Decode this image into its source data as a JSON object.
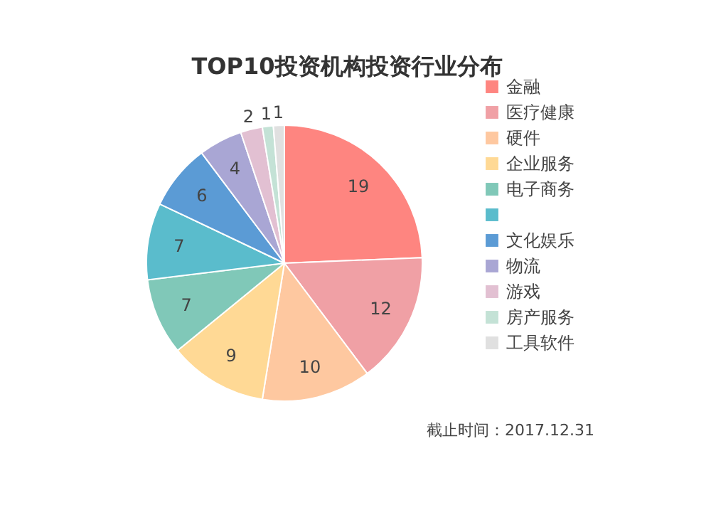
{
  "chart_data": {
    "type": "pie",
    "title": "TOP10投资机构投资行业分布",
    "categories": [
      "金融",
      "医疗健康",
      "硬件",
      "企业服务",
      "电子商务",
      null,
      "文化娱乐",
      "物流",
      "游戏",
      "房产服务",
      "工具软件"
    ],
    "values": [
      19,
      12,
      10,
      9,
      7,
      7,
      6,
      4,
      2,
      1,
      1
    ],
    "colors": [
      "#fe8580",
      "#f0a0a5",
      "#fec8a0",
      "#ffd995",
      "#80c8b8",
      "#5abccc",
      "#5b9bd5",
      "#a9a6d4",
      "#e2c0d2",
      "#c4e2d6",
      "#e0e0e0"
    ],
    "data_labels": true,
    "legend": "right",
    "annotations": [
      "截止时间：2017.12.31"
    ]
  }
}
